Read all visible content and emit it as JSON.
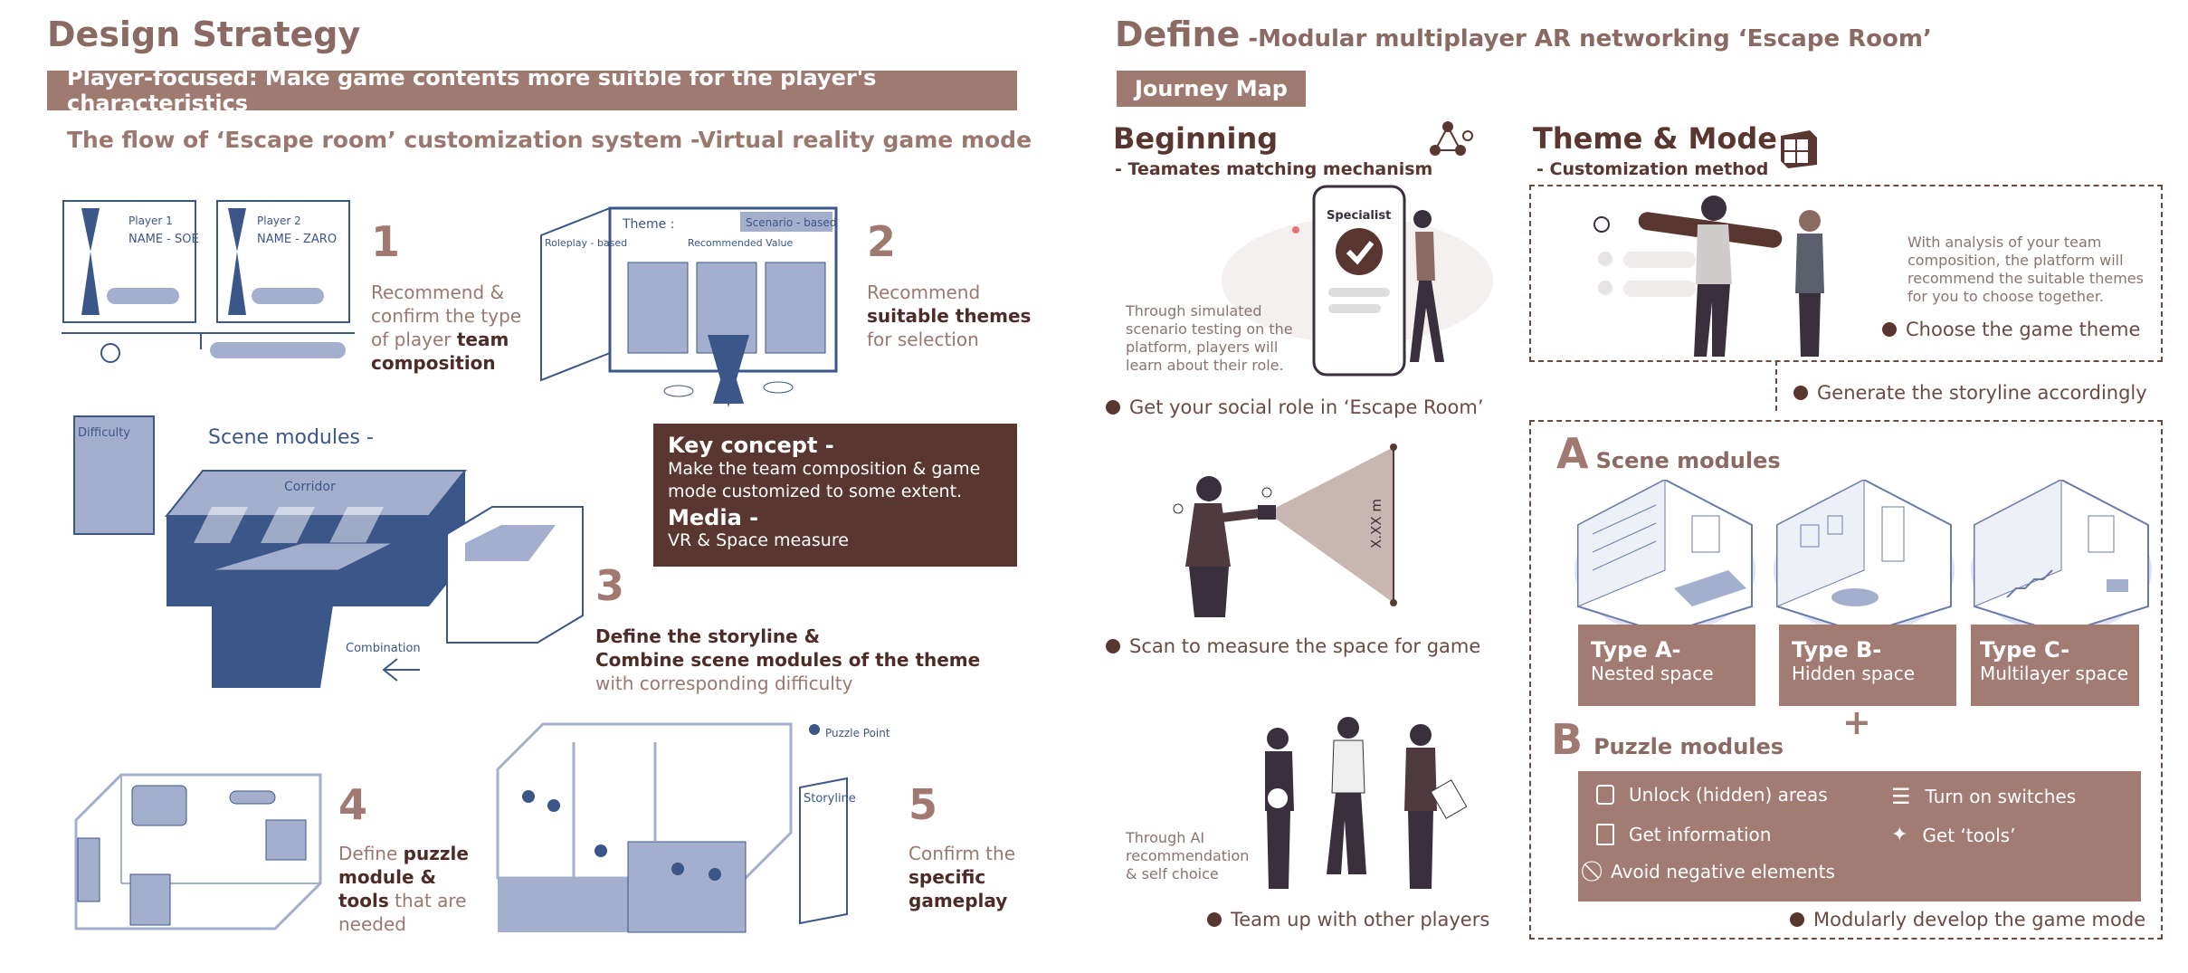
{
  "left": {
    "title": "Design Strategy",
    "banner": "Player-focused: Make game contents more suitble for the player's characteristics",
    "subtitle": "The flow of ‘Escape room’ customization system -Virtual reality game mode",
    "steps": [
      {
        "num": "1",
        "line1": "Recommend &",
        "line2": "confirm the type",
        "line3a": "of player ",
        "line3b": "team",
        "line4": "composition"
      },
      {
        "num": "2",
        "line1": "Recommend",
        "line2": "suitable themes",
        "line3": "for selection"
      },
      {
        "num": "3",
        "line1": "Define the storyline &",
        "line2": "Combine scene modules of the theme",
        "line3": "with corresponding difficulty"
      },
      {
        "num": "4",
        "line1a": "Define ",
        "line1b": "puzzle",
        "line2": "module &",
        "line3a": "tools",
        "line3b": " that are",
        "line4": "needed"
      },
      {
        "num": "5",
        "line1": "Confirm the",
        "line2": "specific",
        "line3": "gameplay"
      }
    ],
    "key_concept": {
      "heading": "Key concept -",
      "text": "Make the team composition & game mode customized to some extent.",
      "media_heading": "Media -",
      "media_text": "VR & Space measure"
    },
    "sketch_text": {
      "player1": "Player 1",
      "name1": "NAME - SOE",
      "player2": "Player 2",
      "name2": "NAME - ZARO",
      "theme": "Theme :",
      "scenario": "Scenario - based",
      "roleplay": "Roleplay - based",
      "recommended": "Recommended Value",
      "difficulty": "Difficulty",
      "scene_modules": "Scene modules -",
      "corridor": "Corridor",
      "type_a": "Type A",
      "type_b": "Type B",
      "combination": "Combination",
      "puzzle_point": "Puzzle Point",
      "storyline": "Storyline"
    }
  },
  "right": {
    "title_main": "Define",
    "title_sub": " -Modular multiplayer AR networking ‘Escape Room’",
    "journey_tab": "Journey Map",
    "beginning": {
      "title": "Beginning",
      "subtitle": "- Teamates matching mechanism",
      "specialist": "Specialist",
      "note1": "Through simulated scenario testing on the platform, players will learn about their role.",
      "label1": "Get your social role in ‘Escape Room’",
      "measure": "X.XX m",
      "label2": "Scan to measure the space for game",
      "note3": "Through AI recommendation & self choice",
      "label3": "Team up with other players"
    },
    "theme": {
      "title": "Theme & Mode",
      "subtitle": "- Customization method",
      "analysis": "With analysis of your team composition, the platform will recommend the suitable themes for you to choose together.",
      "choose": "Choose the game theme",
      "generate": "Generate the storyline accordingly",
      "scene_letter": "A",
      "scene_title": "Scene modules",
      "types": [
        {
          "name": "Type A-",
          "desc": "Nested space"
        },
        {
          "name": "Type B-",
          "desc": "Hidden space"
        },
        {
          "name": "Type C-",
          "desc": "Multilayer space"
        }
      ],
      "plus": "+",
      "puzzle_letter": "B",
      "puzzle_title": "Puzzle modules",
      "puzzles": [
        {
          "icon": "lock-icon",
          "label": "Unlock (hidden) areas"
        },
        {
          "icon": "switch-icon",
          "label": "Turn on switches"
        },
        {
          "icon": "document-icon",
          "label": "Get information"
        },
        {
          "icon": "wand-icon",
          "label": "Get ‘tools’"
        },
        {
          "icon": "prohibited-icon",
          "label": "Avoid negative elements"
        }
      ],
      "develop": "Modularly develop the game mode"
    }
  },
  "colors": {
    "accent": "#9f7a70",
    "dark": "#5a3630",
    "sketch_blue": "#3b5689",
    "sketch_fill": "#a3afcc"
  }
}
